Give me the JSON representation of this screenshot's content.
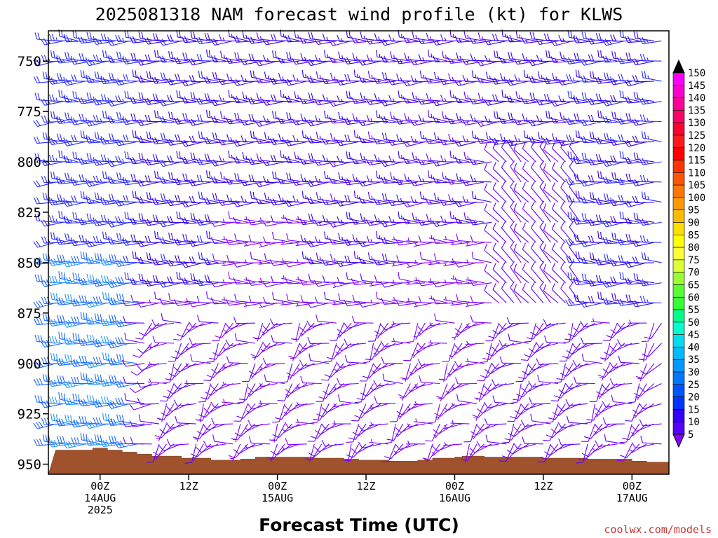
{
  "chart_data": {
    "type": "wind-barb-time-height",
    "title": "2025081318 NAM forecast wind profile (kt) for KLWS",
    "xlabel": "Forecast Time (UTC)",
    "ylabel": "",
    "credit": "coolwx.com/models",
    "y_axis": {
      "unit": "hPa",
      "range": [
        955,
        735
      ],
      "ticks": [
        "750",
        "775",
        "800",
        "825",
        "850",
        "875",
        "900",
        "925",
        "950"
      ]
    },
    "x_axis": {
      "unit": "forecast hours from 2025-08-13 18Z",
      "range": [
        -1,
        83
      ],
      "ticks": [
        {
          "hour": 6,
          "lines": [
            "00Z",
            "14AUG",
            "2025"
          ]
        },
        {
          "hour": 18,
          "lines": [
            "12Z"
          ]
        },
        {
          "hour": 30,
          "lines": [
            "00Z",
            "15AUG"
          ]
        },
        {
          "hour": 42,
          "lines": [
            "12Z"
          ]
        },
        {
          "hour": 54,
          "lines": [
            "00Z",
            "16AUG"
          ]
        },
        {
          "hour": 66,
          "lines": [
            "12Z"
          ]
        },
        {
          "hour": 78,
          "lines": [
            "00Z",
            "17AUG"
          ]
        }
      ]
    },
    "colorbar": {
      "label_unit": "kt",
      "levels": [
        "150",
        "145",
        "140",
        "135",
        "130",
        "125",
        "120",
        "115",
        "110",
        "105",
        "100",
        "95",
        "90",
        "85",
        "80",
        "75",
        "70",
        "65",
        "60",
        "55",
        "50",
        "45",
        "40",
        "35",
        "30",
        "25",
        "20",
        "15",
        "10",
        "5"
      ],
      "colors": [
        "#ff00ff",
        "#ff00cc",
        "#ff0099",
        "#ff0066",
        "#ff0033",
        "#ff1a1a",
        "#ff0000",
        "#ff3300",
        "#ff5500",
        "#ff7700",
        "#ff9900",
        "#ffbb00",
        "#ffdd00",
        "#ffff00",
        "#ffff33",
        "#ddff33",
        "#99ff33",
        "#55ff33",
        "#33ff33",
        "#00ff88",
        "#00ffcc",
        "#00ddee",
        "#00bbff",
        "#0099ff",
        "#0077ff",
        "#0055ff",
        "#0033ff",
        "#3300ff",
        "#5500ff",
        "#8800ff"
      ]
    },
    "hours": [
      0,
      1,
      2,
      3,
      4,
      5,
      6,
      7,
      8,
      9,
      10,
      11,
      12,
      13,
      14,
      15,
      16,
      17,
      18,
      19,
      20,
      21,
      22,
      23,
      24,
      25,
      26,
      27,
      28,
      29,
      30,
      31,
      32,
      33,
      34,
      35,
      36,
      37,
      38,
      39,
      40,
      41,
      42,
      43,
      44,
      45,
      46,
      47,
      48,
      49,
      50,
      51,
      52,
      53,
      54,
      55,
      56,
      57,
      58,
      59,
      60,
      61,
      62,
      63,
      64,
      65,
      66,
      67,
      68,
      69,
      70,
      71,
      72,
      73,
      74,
      75,
      76,
      77,
      78,
      79,
      80,
      81,
      82,
      83,
      84
    ],
    "levels_hpa": [
      740,
      750,
      760,
      770,
      780,
      790,
      800,
      810,
      820,
      830,
      840,
      850,
      860,
      870,
      880,
      890,
      900,
      910,
      920,
      930,
      940,
      950
    ],
    "surface_pressure_hpa": [
      {
        "hour": 0,
        "p": 943
      },
      {
        "hour": 3,
        "p": 943
      },
      {
        "hour": 5,
        "p": 942
      },
      {
        "hour": 7,
        "p": 943
      },
      {
        "hour": 9,
        "p": 944
      },
      {
        "hour": 11,
        "p": 945
      },
      {
        "hour": 13,
        "p": 946
      },
      {
        "hour": 17,
        "p": 947
      },
      {
        "hour": 21,
        "p": 948
      },
      {
        "hour": 25,
        "p": 947.5
      },
      {
        "hour": 27,
        "p": 946.5
      },
      {
        "hour": 33,
        "p": 946.5
      },
      {
        "hour": 35,
        "p": 947
      },
      {
        "hour": 39,
        "p": 947.5
      },
      {
        "hour": 41,
        "p": 948
      },
      {
        "hour": 45,
        "p": 948.5
      },
      {
        "hour": 49,
        "p": 948
      },
      {
        "hour": 51,
        "p": 947
      },
      {
        "hour": 54,
        "p": 946.5
      },
      {
        "hour": 55,
        "p": 946
      },
      {
        "hour": 58,
        "p": 946.5
      },
      {
        "hour": 66,
        "p": 947
      },
      {
        "hour": 72,
        "p": 947.5
      },
      {
        "hour": 78,
        "p": 948.5
      },
      {
        "hour": 80,
        "p": 949
      },
      {
        "hour": 83,
        "p": 949.5
      }
    ]
  }
}
